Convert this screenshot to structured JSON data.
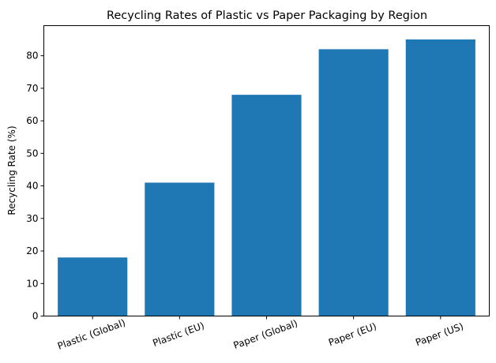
{
  "chart_data": {
    "type": "bar",
    "title": "Recycling Rates of Plastic vs Paper Packaging by Region",
    "xlabel": "",
    "ylabel": "Recycling Rate (%)",
    "categories": [
      "Plastic (Global)",
      "Plastic (EU)",
      "Paper (Global)",
      "Paper (EU)",
      "Paper (US)"
    ],
    "values": [
      18,
      41,
      68,
      82,
      85
    ],
    "ylim": [
      0,
      89.25
    ],
    "yticks": [
      0,
      10,
      20,
      30,
      40,
      50,
      60,
      70,
      80
    ],
    "grid": false,
    "legend": null,
    "bar_color": "#1f77b4",
    "xtick_rotation": -20
  }
}
